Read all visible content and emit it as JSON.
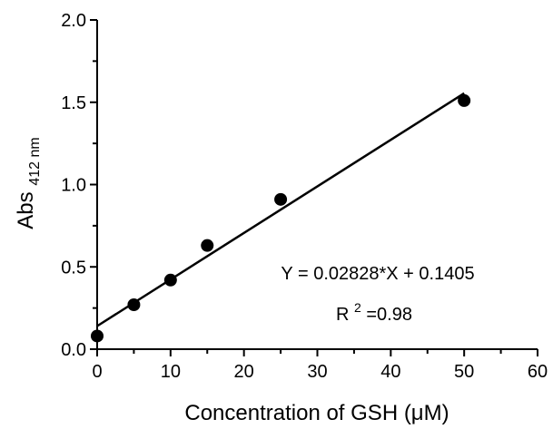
{
  "chart_data": {
    "type": "scatter",
    "title": "",
    "xlabel": "Concentration of GSH (μM)",
    "ylabel_main": "Abs",
    "ylabel_sub": "412 nm",
    "xlim": [
      0,
      60
    ],
    "ylim": [
      0.0,
      2.0
    ],
    "x_ticks": [
      "0",
      "10",
      "20",
      "30",
      "40",
      "50",
      "60"
    ],
    "y_ticks": [
      "0.0",
      "0.5",
      "1.0",
      "1.5",
      "2.0"
    ],
    "grid": false,
    "points": [
      {
        "x": 0,
        "y": 0.08
      },
      {
        "x": 5,
        "y": 0.27
      },
      {
        "x": 10,
        "y": 0.42
      },
      {
        "x": 15,
        "y": 0.63
      },
      {
        "x": 25,
        "y": 0.91
      },
      {
        "x": 50,
        "y": 1.51
      }
    ],
    "fit": {
      "slope": 0.02828,
      "intercept": 0.1405,
      "x_range": [
        0,
        50
      ]
    },
    "annotations": {
      "equation": "Y = 0.02828*X + 0.1405",
      "r2_prefix": "R",
      "r2_sup": "2",
      "r2_suffix": "=0.98"
    },
    "colors": {
      "marker": "#000000",
      "line": "#000000",
      "axis": "#000000"
    }
  }
}
